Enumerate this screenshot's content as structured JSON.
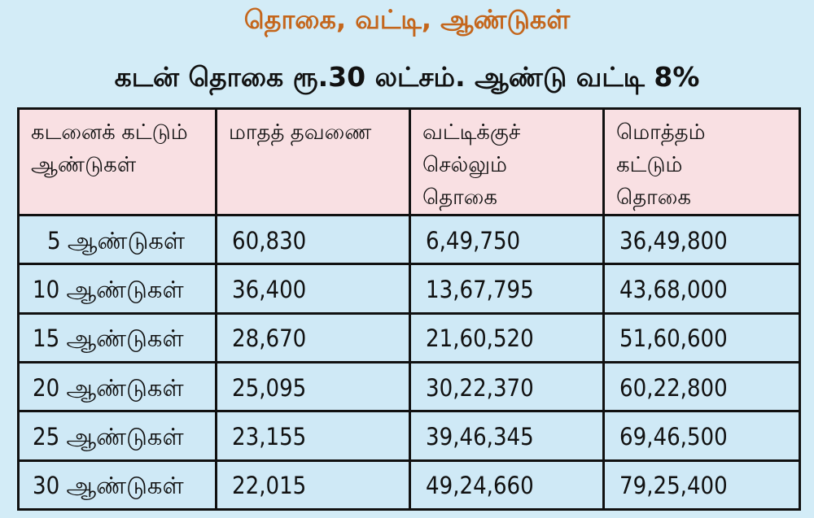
{
  "title": "தொகை, வட்டி, ஆண்டுகள்",
  "subtitle": "கடன் தொகை ரூ.30 லட்சம். ஆண்டு வட்டி 8%",
  "table": {
    "headers": [
      [
        "கடனைக் கட்டும்",
        "ஆண்டுகள்"
      ],
      [
        "மாதத் தவணை"
      ],
      [
        "வட்டிக்குச்",
        "செல்லும்",
        "தொகை"
      ],
      [
        "மொத்தம்",
        "கட்டும்",
        "தொகை"
      ]
    ],
    "rows": [
      [
        "5 ஆண்டுகள்",
        "60,830",
        "6,49,750",
        "36,49,800"
      ],
      [
        "10 ஆண்டுகள்",
        "36,400",
        "13,67,795",
        "43,68,000"
      ],
      [
        "15 ஆண்டுகள்",
        "28,670",
        "21,60,520",
        "51,60,600"
      ],
      [
        "20 ஆண்டுகள்",
        "25,095",
        "30,22,370",
        "60,22,800"
      ],
      [
        "25 ஆண்டுகள்",
        "23,155",
        "39,46,345",
        "69,46,500"
      ],
      [
        "30 ஆண்டுகள்",
        "22,015",
        "49,24,660",
        "79,25,400"
      ]
    ]
  },
  "colors": {
    "background": "#d3ecf7",
    "title": "#c4661c",
    "header_bg": "#f9e0e3",
    "row_bg": "#cfe9f6",
    "border": "#111111"
  }
}
